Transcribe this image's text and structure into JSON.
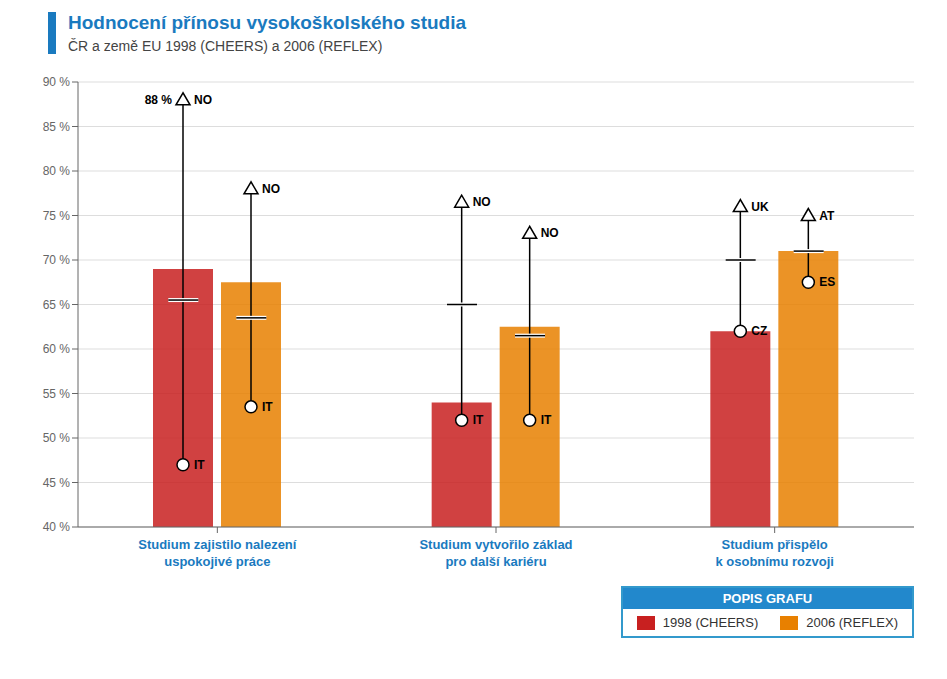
{
  "chart_data": {
    "type": "bar",
    "title": "Hodnocení přínosu vysokoškolského studia",
    "subtitle": "ČR a země EU 1998 (CHEERS) a 2006 (REFLEX)",
    "categories": [
      "Studium zajistilo nalezení\nuspokojivé práce",
      "Studium vytvořilo základ\npro další kariéru",
      "Studium přispělo\nk osobnímu rozvoji"
    ],
    "series": [
      {
        "name": "1998 (CHEERS)",
        "color": "#c82020",
        "values": [
          69,
          54,
          62
        ],
        "mean": [
          65.5,
          65,
          70
        ],
        "min": [
          47,
          52,
          62
        ],
        "max": [
          88,
          76.5,
          76
        ],
        "min_labels": [
          "IT",
          "IT",
          "CZ"
        ],
        "max_labels": [
          "NO",
          "NO",
          "UK"
        ],
        "max_annotations": [
          "88 %",
          null,
          null
        ]
      },
      {
        "name": "2006 (REFLEX)",
        "color": "#e88000",
        "values": [
          67.5,
          62.5,
          71
        ],
        "mean": [
          63.5,
          61.5,
          71
        ],
        "min": [
          53.5,
          52,
          67.5
        ],
        "max": [
          78,
          73,
          75
        ],
        "min_labels": [
          "IT",
          "IT",
          "ES"
        ],
        "max_labels": [
          "NO",
          "NO",
          "AT"
        ],
        "max_annotations": [
          null,
          null,
          null
        ]
      }
    ],
    "legend_title": "POPIS GRAFU",
    "ylim": [
      40,
      90
    ],
    "yticks": [
      {
        "value": 40,
        "label": "40 %"
      },
      {
        "value": 45,
        "label": "45 %"
      },
      {
        "value": 50,
        "label": "50 %"
      },
      {
        "value": 55,
        "label": "55 %"
      },
      {
        "value": 60,
        "label": "60 %"
      },
      {
        "value": 65,
        "label": "65 %"
      },
      {
        "value": 70,
        "label": "70 %"
      },
      {
        "value": 75,
        "label": "75 %"
      },
      {
        "value": 80,
        "label": "80 %"
      },
      {
        "value": 85,
        "label": "85 %"
      },
      {
        "value": 90,
        "label": "90 %"
      }
    ],
    "grid": true,
    "legend": "bottom"
  }
}
